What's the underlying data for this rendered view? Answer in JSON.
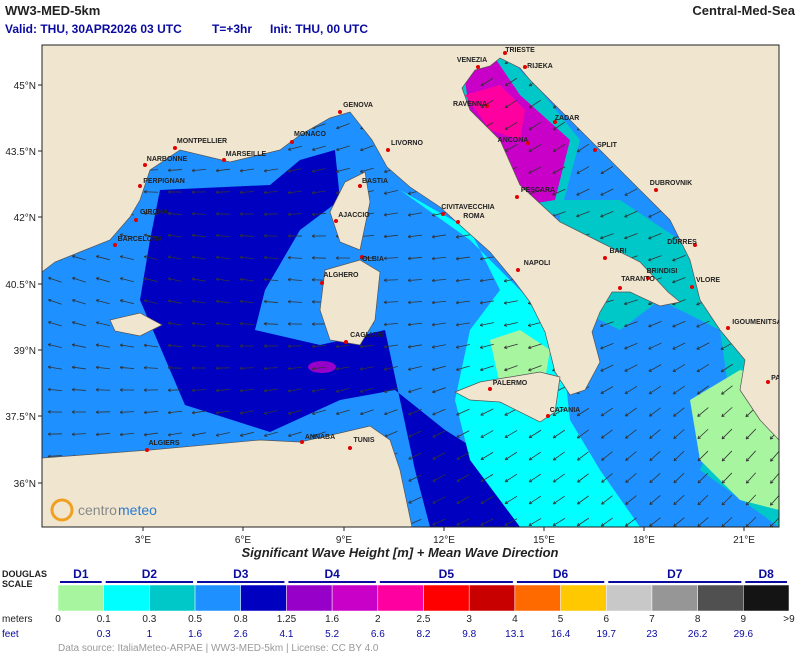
{
  "header": {
    "title": "WW3-MED-5km",
    "region": "Central-Med-Sea",
    "valid": "Valid: THU, 30APR2026 03 UTC",
    "step": "T=+3hr",
    "init": "Init: THU, 00 UTC"
  },
  "map": {
    "lat_labels": [
      "45°N",
      "43.5°N",
      "42°N",
      "40.5°N",
      "39°N",
      "37.5°N",
      "36°N"
    ],
    "lon_labels": [
      "3°E",
      "6°E",
      "9°E",
      "12°E",
      "15°E",
      "18°E",
      "21°E"
    ],
    "cities": [
      "TRIESTE",
      "VENEZIA",
      "RIJEKA",
      "RAVENNA",
      "ZADAR",
      "ANCONA",
      "SPLIT",
      "GENOVA",
      "MONTPELLIER",
      "MONACO",
      "LIVORNO",
      "NARBONNE",
      "MARSEILLE",
      "PERPIGNAN",
      "BASTIA",
      "DUBROVNIK",
      "PESCARA",
      "CIVITAVECCHIA",
      "GIRONA",
      "AJACCIO",
      "ROMA",
      "BARCELONA",
      "DURRES",
      "BARI",
      "OLBIA",
      "NAPOLI",
      "BRINDISI",
      "ALGHERO",
      "TARANTO",
      "VLORE",
      "IGOUMENITSA",
      "CAGLIARI",
      "PATRAS",
      "PALERMO",
      "CATANIA",
      "ALGIERS",
      "ANNABA",
      "TUNIS"
    ],
    "logo": [
      "centro",
      "meteo"
    ]
  },
  "caption": "Significant Wave Height [m]  +  Mean Wave Direction",
  "legend": {
    "title": [
      "DOUGLAS",
      "SCALE"
    ],
    "douglas": [
      "D1",
      "D2",
      "D3",
      "D4",
      "D5",
      "D6",
      "D7",
      "D8"
    ],
    "meters_label": "meters",
    "feet_label": "feet",
    "meters": [
      "0",
      "0.1",
      "0.3",
      "0.5",
      "0.8",
      "1.25",
      "1.6",
      "2",
      "2.5",
      "3",
      "4",
      "5",
      "6",
      "7",
      "8",
      "9",
      ">9"
    ],
    "feet": [
      "0.3",
      "1",
      "1.6",
      "2.6",
      "4.1",
      "5.2",
      "6.6",
      "8.2",
      "9.8",
      "13.1",
      "16.4",
      "19.7",
      "23",
      "26.2",
      "29.6"
    ],
    "colors": [
      "#a8f5a0",
      "#00ffff",
      "#00c8c8",
      "#1e90ff",
      "#0000c0",
      "#9600c8",
      "#c800c8",
      "#ff00a0",
      "#ff0000",
      "#c80000",
      "#ff6a00",
      "#ffc800",
      "#c8c8c8",
      "#969696",
      "#505050",
      "#141414"
    ]
  },
  "footer": "Data source: ItaliaMeteo-ARPAE | WW3-MED-5km | License: CC BY 4.0"
}
